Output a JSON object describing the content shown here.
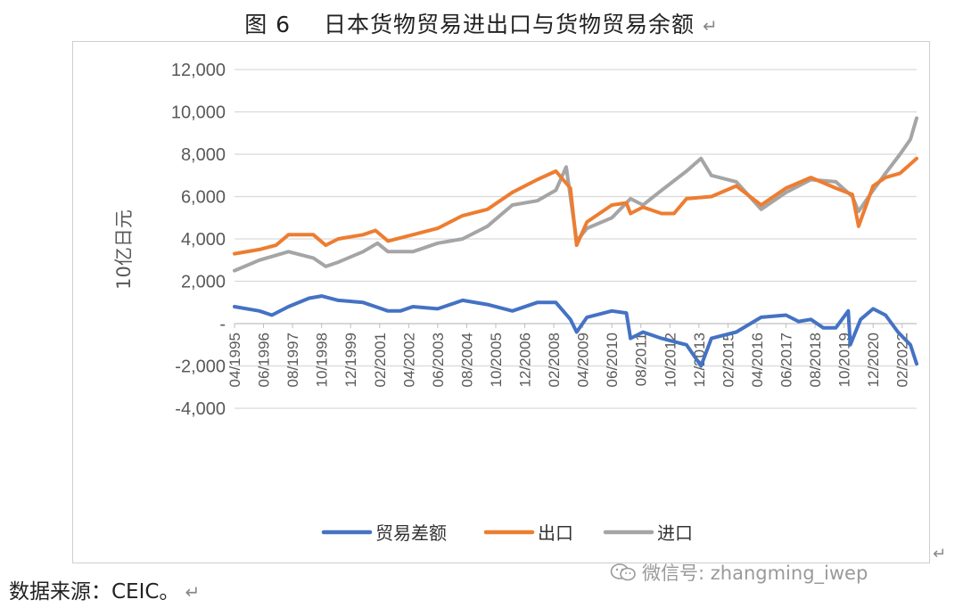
{
  "figure": {
    "title_label": "图 6",
    "title_text": "日本货物贸易进出口与货物贸易余额",
    "return_mark": "↵"
  },
  "source_note": "数据来源：CEIC。",
  "watermark": {
    "icon": "wechat-icon",
    "text": "微信号: zhangming_iwep"
  },
  "chart_data": {
    "type": "line",
    "title": "",
    "ylabel": "10亿日元",
    "xlabel": "",
    "ylim": [
      -4000,
      12000
    ],
    "y_ticks": [
      -4000,
      -2000,
      0,
      2000,
      4000,
      6000,
      8000,
      10000,
      12000
    ],
    "y_tick_labels": [
      "-4,000",
      "-2,000",
      "-",
      "2,000",
      "4,000",
      "6,000",
      "8,000",
      "10,000",
      "12,000"
    ],
    "grid": "horizontal",
    "legend_position": "bottom",
    "x_tick_labels": [
      "04/1995",
      "06/1996",
      "08/1997",
      "10/1998",
      "12/1999",
      "02/2001",
      "04/2002",
      "06/2003",
      "08/2004",
      "10/2005",
      "12/2006",
      "02/2008",
      "04/2009",
      "06/2010",
      "08/2011",
      "10/2012",
      "12/2013",
      "02/2015",
      "04/2016",
      "06/2017",
      "08/2018",
      "10/2019",
      "12/2020",
      "02/2022"
    ],
    "x_start": "1995-04",
    "x_end": "2022-09",
    "series": [
      {
        "name": "贸易差额",
        "color": "#4472C4",
        "points": [
          [
            "1995-04",
            800
          ],
          [
            "1996-04",
            600
          ],
          [
            "1996-10",
            400
          ],
          [
            "1997-06",
            800
          ],
          [
            "1998-04",
            1200
          ],
          [
            "1998-10",
            1300
          ],
          [
            "1999-06",
            1100
          ],
          [
            "2000-06",
            1000
          ],
          [
            "2000-12",
            800
          ],
          [
            "2001-06",
            600
          ],
          [
            "2001-12",
            600
          ],
          [
            "2002-06",
            800
          ],
          [
            "2003-06",
            700
          ],
          [
            "2004-06",
            1100
          ],
          [
            "2005-06",
            900
          ],
          [
            "2006-06",
            600
          ],
          [
            "2007-06",
            1000
          ],
          [
            "2008-03",
            1000
          ],
          [
            "2008-10",
            200
          ],
          [
            "2009-01",
            -400
          ],
          [
            "2009-06",
            300
          ],
          [
            "2010-06",
            600
          ],
          [
            "2011-01",
            500
          ],
          [
            "2011-03",
            -700
          ],
          [
            "2011-09",
            -400
          ],
          [
            "2012-06",
            -700
          ],
          [
            "2013-06",
            -1000
          ],
          [
            "2014-01",
            -2000
          ],
          [
            "2014-06",
            -700
          ],
          [
            "2015-06",
            -400
          ],
          [
            "2016-06",
            300
          ],
          [
            "2017-06",
            400
          ],
          [
            "2017-12",
            100
          ],
          [
            "2018-06",
            200
          ],
          [
            "2018-12",
            -200
          ],
          [
            "2019-06",
            -200
          ],
          [
            "2019-12",
            600
          ],
          [
            "2020-01",
            -1000
          ],
          [
            "2020-06",
            200
          ],
          [
            "2020-12",
            700
          ],
          [
            "2021-06",
            400
          ],
          [
            "2021-12",
            -400
          ],
          [
            "2022-06",
            -1000
          ],
          [
            "2022-09",
            -1900
          ]
        ]
      },
      {
        "name": "出口",
        "color": "#ED7D31",
        "points": [
          [
            "1995-04",
            3300
          ],
          [
            "1996-04",
            3500
          ],
          [
            "1996-12",
            3700
          ],
          [
            "1997-06",
            4200
          ],
          [
            "1998-06",
            4200
          ],
          [
            "1998-12",
            3700
          ],
          [
            "1999-06",
            4000
          ],
          [
            "2000-06",
            4200
          ],
          [
            "2000-12",
            4400
          ],
          [
            "2001-06",
            3900
          ],
          [
            "2002-06",
            4200
          ],
          [
            "2003-06",
            4500
          ],
          [
            "2004-06",
            5100
          ],
          [
            "2005-06",
            5400
          ],
          [
            "2006-06",
            6200
          ],
          [
            "2007-06",
            6800
          ],
          [
            "2008-03",
            7200
          ],
          [
            "2008-10",
            6400
          ],
          [
            "2009-01",
            3700
          ],
          [
            "2009-06",
            4800
          ],
          [
            "2010-06",
            5600
          ],
          [
            "2011-01",
            5700
          ],
          [
            "2011-03",
            5200
          ],
          [
            "2011-09",
            5500
          ],
          [
            "2012-06",
            5200
          ],
          [
            "2012-12",
            5200
          ],
          [
            "2013-06",
            5900
          ],
          [
            "2014-06",
            6000
          ],
          [
            "2015-06",
            6500
          ],
          [
            "2016-06",
            5600
          ],
          [
            "2017-06",
            6400
          ],
          [
            "2018-06",
            6900
          ],
          [
            "2019-06",
            6400
          ],
          [
            "2020-02",
            6100
          ],
          [
            "2020-05",
            4600
          ],
          [
            "2020-12",
            6500
          ],
          [
            "2021-06",
            6900
          ],
          [
            "2022-01",
            7100
          ],
          [
            "2022-09",
            7800
          ]
        ]
      },
      {
        "name": "进口",
        "color": "#A5A5A5",
        "points": [
          [
            "1995-04",
            2500
          ],
          [
            "1996-04",
            3000
          ],
          [
            "1997-06",
            3400
          ],
          [
            "1998-06",
            3100
          ],
          [
            "1998-12",
            2700
          ],
          [
            "1999-06",
            2900
          ],
          [
            "2000-06",
            3400
          ],
          [
            "2001-01",
            3800
          ],
          [
            "2001-06",
            3400
          ],
          [
            "2002-06",
            3400
          ],
          [
            "2003-06",
            3800
          ],
          [
            "2004-06",
            4000
          ],
          [
            "2005-06",
            4600
          ],
          [
            "2006-06",
            5600
          ],
          [
            "2007-06",
            5800
          ],
          [
            "2008-03",
            6300
          ],
          [
            "2008-08",
            7400
          ],
          [
            "2009-01",
            3900
          ],
          [
            "2009-06",
            4500
          ],
          [
            "2010-06",
            5000
          ],
          [
            "2011-03",
            5900
          ],
          [
            "2011-09",
            5600
          ],
          [
            "2012-06",
            6300
          ],
          [
            "2013-06",
            7200
          ],
          [
            "2014-01",
            7800
          ],
          [
            "2014-06",
            7000
          ],
          [
            "2015-06",
            6700
          ],
          [
            "2016-06",
            5400
          ],
          [
            "2017-06",
            6200
          ],
          [
            "2018-06",
            6800
          ],
          [
            "2019-06",
            6700
          ],
          [
            "2020-02",
            6000
          ],
          [
            "2020-05",
            5300
          ],
          [
            "2020-12",
            6300
          ],
          [
            "2021-06",
            7100
          ],
          [
            "2022-01",
            8000
          ],
          [
            "2022-06",
            8700
          ],
          [
            "2022-09",
            9700
          ]
        ]
      }
    ]
  }
}
